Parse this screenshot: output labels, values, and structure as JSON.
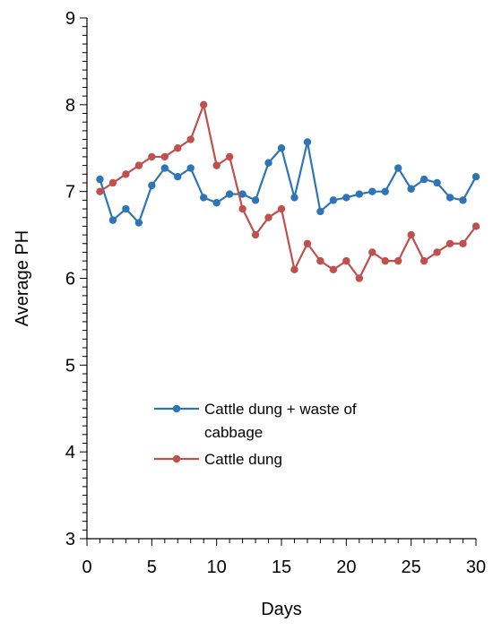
{
  "chart_data": {
    "type": "line",
    "title": "",
    "xlabel": "Days",
    "ylabel": "Average PH",
    "xlim": [
      0,
      30
    ],
    "ylim": [
      3,
      9
    ],
    "x_ticks": [
      0,
      5,
      10,
      15,
      20,
      25,
      30
    ],
    "y_ticks": [
      3,
      4,
      5,
      6,
      7,
      8,
      9
    ],
    "grid": false,
    "legend_position": "center-left",
    "x": [
      1,
      2,
      3,
      4,
      5,
      6,
      7,
      8,
      9,
      10,
      11,
      12,
      13,
      14,
      15,
      16,
      17,
      18,
      19,
      20,
      21,
      22,
      23,
      24,
      25,
      26,
      27,
      28,
      29,
      30
    ],
    "series": [
      {
        "name": "Cattle dung + waste of cabbage",
        "legend_lines": [
          "Cattle dung + waste of",
          "cabbage"
        ],
        "color": "#2E75B6",
        "values": [
          7.14,
          6.67,
          6.8,
          6.64,
          7.07,
          7.27,
          7.17,
          7.27,
          6.93,
          6.87,
          6.97,
          6.97,
          6.9,
          7.33,
          7.5,
          6.93,
          7.57,
          6.77,
          6.9,
          6.93,
          6.97,
          7.0,
          7.0,
          7.27,
          7.03,
          7.14,
          7.1,
          6.93,
          6.9,
          7.17
        ]
      },
      {
        "name": "Cattle dung",
        "legend_lines": [
          "Cattle dung"
        ],
        "color": "#C0504D",
        "values": [
          7.0,
          7.1,
          7.2,
          7.3,
          7.4,
          7.4,
          7.5,
          7.6,
          8.0,
          7.3,
          7.4,
          6.8,
          6.5,
          6.7,
          6.8,
          6.1,
          6.4,
          6.2,
          6.1,
          6.2,
          6.0,
          6.3,
          6.2,
          6.2,
          6.5,
          6.2,
          6.3,
          6.4,
          6.4,
          6.6
        ]
      }
    ]
  }
}
